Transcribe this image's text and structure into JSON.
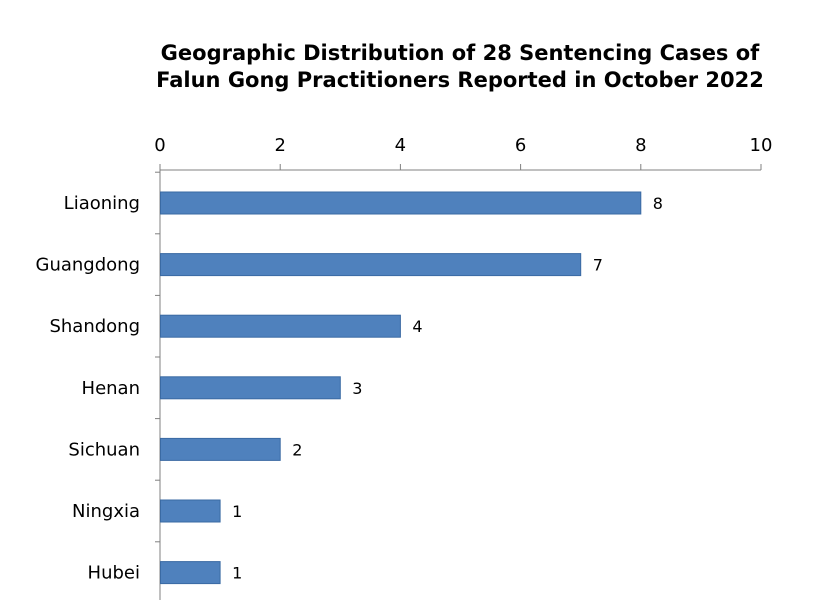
{
  "chart_data": {
    "type": "bar",
    "orientation": "horizontal",
    "title_lines": [
      "Geographic Distribution of 28 Sentencing Cases of",
      "Falun Gong Practitioners Reported in October 2022"
    ],
    "categories": [
      "Liaoning",
      "Guangdong",
      "Shandong",
      "Henan",
      "Sichuan",
      "Ningxia",
      "Hubei"
    ],
    "values": [
      8,
      7,
      4,
      3,
      2,
      1,
      1
    ],
    "data_labels": [
      "8",
      "7",
      "4",
      "3",
      "2",
      "1",
      "1"
    ],
    "xlim": [
      0,
      10
    ],
    "x_ticks": [
      0,
      2,
      4,
      6,
      8,
      10
    ],
    "x_tick_labels": [
      "0",
      "2",
      "4",
      "6",
      "8",
      "10"
    ],
    "x_axis_position": "top",
    "grid": false,
    "bar_color": "#4f81bd"
  }
}
